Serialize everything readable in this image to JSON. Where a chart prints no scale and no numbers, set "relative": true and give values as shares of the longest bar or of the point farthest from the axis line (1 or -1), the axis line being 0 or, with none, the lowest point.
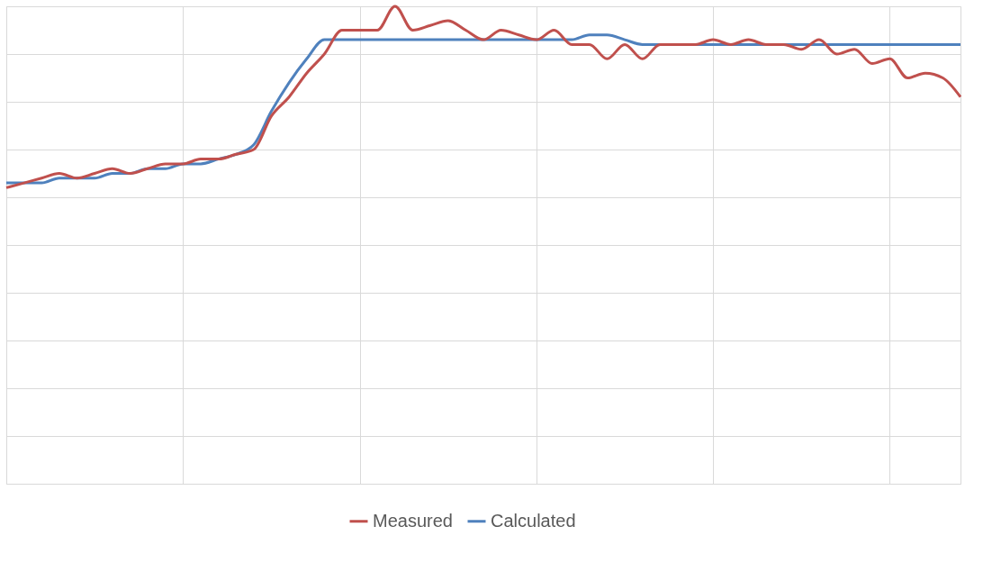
{
  "chart_data": {
    "type": "line",
    "relative": true,
    "grid": true,
    "legend": "bottom",
    "tick_labels": false,
    "categories": [
      null,
      null,
      null,
      null,
      null,
      null,
      null,
      null,
      null,
      null,
      null,
      null,
      null,
      null,
      null,
      null,
      null,
      null,
      null,
      null,
      null,
      null,
      null,
      null,
      null,
      null,
      null,
      null,
      null,
      null,
      null,
      null,
      null,
      null,
      null,
      null,
      null,
      null,
      null,
      null,
      null,
      null,
      null,
      null,
      null,
      null,
      null,
      null,
      null,
      null,
      null,
      null,
      null,
      null,
      null
    ],
    "series": [
      {
        "name": "Measured",
        "color": "#c0504d",
        "values": [
          0.62,
          0.63,
          0.64,
          0.65,
          0.64,
          0.65,
          0.66,
          0.65,
          0.66,
          0.67,
          0.67,
          0.68,
          0.68,
          0.69,
          0.7,
          0.77,
          0.81,
          0.86,
          0.9,
          0.95,
          0.95,
          0.95,
          1.0,
          0.95,
          0.96,
          0.97,
          0.95,
          0.93,
          0.95,
          0.94,
          0.93,
          0.95,
          0.92,
          0.92,
          0.89,
          0.92,
          0.89,
          0.92,
          0.92,
          0.92,
          0.93,
          0.92,
          0.93,
          0.92,
          0.92,
          0.91,
          0.93,
          0.9,
          0.91,
          0.88,
          0.89,
          0.85,
          0.86,
          0.85,
          0.81
        ]
      },
      {
        "name": "Calculated",
        "color": "#4f81bd",
        "values": [
          0.63,
          0.63,
          0.63,
          0.64,
          0.64,
          0.64,
          0.65,
          0.65,
          0.66,
          0.66,
          0.67,
          0.67,
          0.68,
          0.69,
          0.71,
          0.78,
          0.84,
          0.89,
          0.93,
          0.93,
          0.93,
          0.93,
          0.93,
          0.93,
          0.93,
          0.93,
          0.93,
          0.93,
          0.93,
          0.93,
          0.93,
          0.93,
          0.93,
          0.94,
          0.94,
          0.93,
          0.92,
          0.92,
          0.92,
          0.92,
          0.92,
          0.92,
          0.92,
          0.92,
          0.92,
          0.92,
          0.92,
          0.92,
          0.92,
          0.92,
          0.92,
          0.92,
          0.92,
          0.92,
          0.92
        ]
      }
    ]
  }
}
